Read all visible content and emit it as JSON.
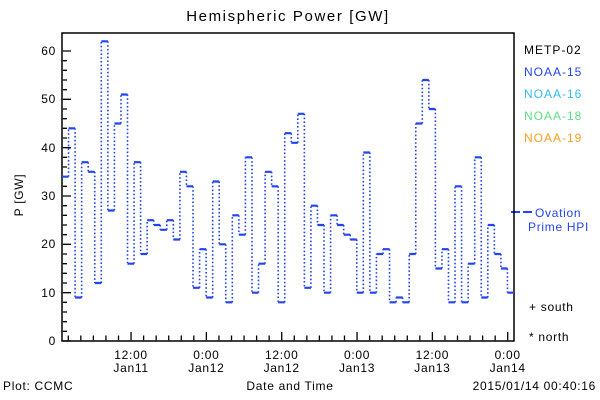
{
  "title": "Hemispheric Power [GW]",
  "y_axis": {
    "label": "P [GW]",
    "ticks": [
      0,
      10,
      20,
      30,
      40,
      50,
      60
    ],
    "minor_step": 2,
    "range": [
      0,
      64
    ]
  },
  "x_axis": {
    "label": "Date and Time",
    "range_hours": 72,
    "minor_step_hours": 2,
    "ticks": [
      {
        "hour": 11,
        "time": "12:00",
        "date": "Jan11"
      },
      {
        "hour": 23,
        "time": "0:00",
        "date": "Jan12"
      },
      {
        "hour": 35,
        "time": "12:00",
        "date": "Jan12"
      },
      {
        "hour": 47,
        "time": "0:00",
        "date": "Jan13"
      },
      {
        "hour": 59,
        "time": "12:00",
        "date": "Jan13"
      },
      {
        "hour": 71,
        "time": "0:00",
        "date": "Jan14"
      }
    ]
  },
  "legend": {
    "satellites": [
      {
        "label": "METP-02",
        "color": "#000000"
      },
      {
        "label": "NOAA-15",
        "color": "#2244ee"
      },
      {
        "label": "NOAA-16",
        "color": "#33bbee"
      },
      {
        "label": "NOAA-18",
        "color": "#5fdf85"
      },
      {
        "label": "NOAA-19",
        "color": "#f8a01e"
      }
    ]
  },
  "ovation_legend": {
    "line1": "Ovation",
    "line2": "Prime HPI",
    "color": "#2244ee"
  },
  "markers": {
    "south": "+ south",
    "north": "* north"
  },
  "footer": {
    "credit": "Plot: CCMC",
    "timestamp": "2015/01/14 00:40:16"
  },
  "chart_data": {
    "type": "line",
    "style": "step, solid horizontals with dotted vertical risers",
    "series_name": "Ovation Prime HPI",
    "color": "#2244ee",
    "x_range_hours": 72,
    "xlim_labels": [
      "Jan11 ~01:00",
      "Jan14 ~00:40"
    ],
    "ylim": [
      0,
      64
    ],
    "ylabel": "P [GW]",
    "xlabel": "Date and Time",
    "grid": false,
    "legend_position": "right-outside",
    "step_values": [
      34,
      44,
      9,
      37,
      35,
      12,
      62,
      27,
      45,
      51,
      16,
      37,
      18,
      25,
      24,
      23,
      25,
      21,
      35,
      32,
      11,
      19,
      9,
      33,
      20,
      8,
      26,
      22,
      38,
      10,
      16,
      35,
      32,
      8,
      43,
      41,
      47,
      11,
      28,
      24,
      10,
      26,
      24,
      22,
      21,
      10,
      39,
      10,
      18,
      19,
      8,
      9,
      8,
      18,
      45,
      54,
      48,
      15,
      19,
      8,
      32,
      8,
      16,
      38,
      9,
      24,
      18,
      15,
      10
    ]
  }
}
